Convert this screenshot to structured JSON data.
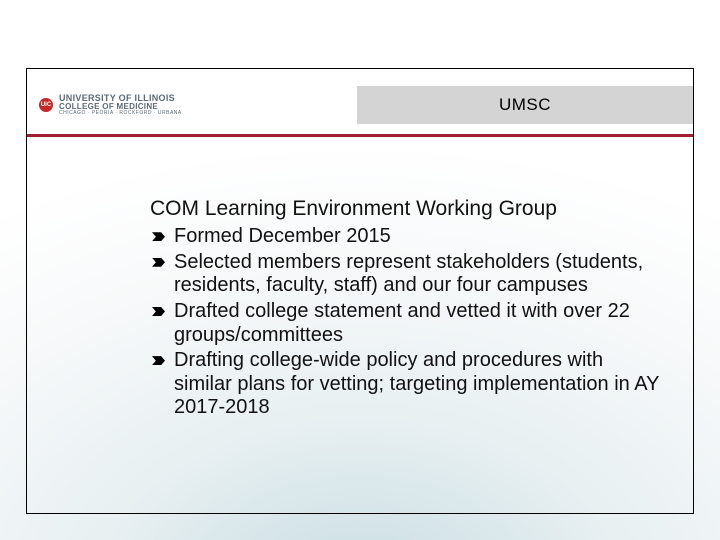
{
  "header": {
    "logo": {
      "badge_text": "UIC",
      "line1": "UNIVERSITY OF ILLINOIS",
      "line2": "COLLEGE OF MEDICINE",
      "line3": "CHICAGO · PEORIA · ROCKFORD · URBANA"
    },
    "title": "UMSC"
  },
  "content": {
    "heading": "COM Learning Environment Working Group",
    "bullets": [
      "Formed December 2015",
      "Selected members represent stakeholders (students, residents, faculty, staff) and our four campuses",
      "Drafted college statement and vetted it with over 22 groups/committees",
      "Drafting college-wide policy and procedures with similar plans for vetting; targeting implementation in AY 2017-2018"
    ]
  },
  "style": {
    "slide_width": 720,
    "slide_height": 540,
    "title_bar_bg": "#d4d4d4",
    "divider_color": "#a31f34",
    "frame_border_color": "#000000",
    "background_gradient_from": "#c8dde2",
    "background_gradient_to": "#ffffff",
    "heading_fontsize": 21,
    "bullet_fontsize": 20,
    "bullet_color": "#000000",
    "text_color": "#111111",
    "logo_text_color": "#5a6b78",
    "uic_badge_bg": "#c62828"
  }
}
